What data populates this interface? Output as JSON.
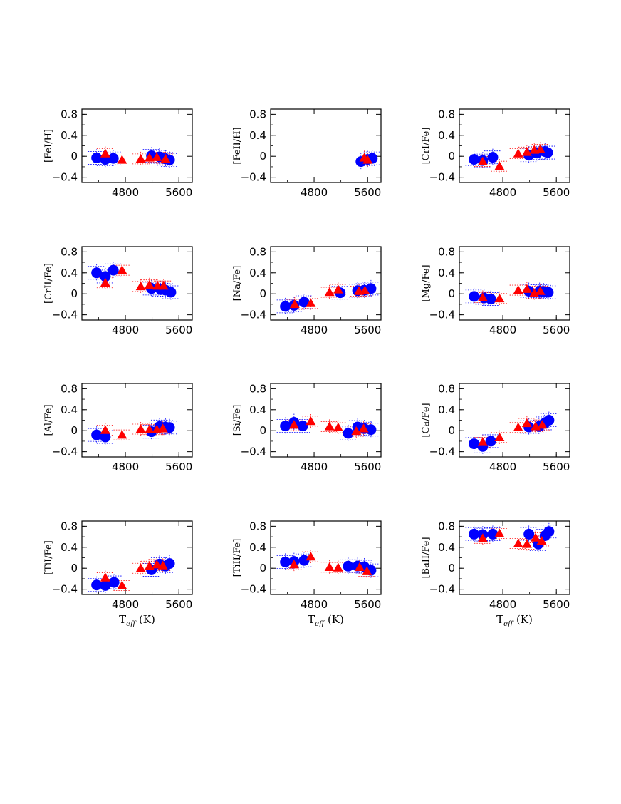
{
  "chart_data": [
    {
      "type": "scatter",
      "ylabel": "[FeI/H]",
      "xlabel": "",
      "xlim": [
        4150,
        5800
      ],
      "ylim": [
        -0.5,
        0.9
      ],
      "xticks": [
        4800,
        5600
      ],
      "yticks": [
        0.8,
        0.4,
        0,
        -0.4
      ],
      "ytick_labels": [
        "0.8",
        "0.4",
        "0",
        "−0.4"
      ],
      "xtick_labels": [
        "4800",
        "5600"
      ],
      "series": [
        {
          "name": "circles",
          "color": "#0000ff",
          "points": [
            [
              4370,
              -0.03
            ],
            [
              4500,
              -0.06
            ],
            [
              4620,
              -0.04
            ],
            [
              5190,
              0.01
            ],
            [
              5310,
              -0.01
            ],
            [
              5400,
              -0.05
            ],
            [
              5460,
              -0.07
            ]
          ]
        },
        {
          "name": "triangles",
          "color": "#ff0000",
          "points": [
            [
              4500,
              0.05
            ],
            [
              4750,
              -0.07
            ],
            [
              5030,
              -0.05
            ],
            [
              5160,
              -0.03
            ],
            [
              5270,
              -0.02
            ],
            [
              5400,
              -0.05
            ]
          ]
        }
      ]
    },
    {
      "type": "scatter",
      "ylabel": "[FeII/H]",
      "xlabel": "",
      "xlim": [
        4150,
        5800
      ],
      "ylim": [
        -0.5,
        0.9
      ],
      "xticks": [
        4800,
        5600
      ],
      "yticks": [
        0.8,
        0.4,
        0,
        -0.4
      ],
      "ytick_labels": [
        "0.8",
        "0.4",
        "0",
        "−0.4"
      ],
      "xtick_labels": [
        "4800",
        "5600"
      ],
      "series": [
        {
          "name": "circles",
          "color": "#0000ff",
          "points": [
            [
              5500,
              -0.1
            ],
            [
              5600,
              -0.06
            ],
            [
              5670,
              -0.04
            ]
          ]
        },
        {
          "name": "triangles",
          "color": "#ff0000",
          "points": [
            [
              5550,
              -0.03
            ],
            [
              5600,
              -0.07
            ]
          ]
        }
      ]
    },
    {
      "type": "scatter",
      "ylabel": "[CrI/Fe]",
      "xlabel": "",
      "xlim": [
        4150,
        5800
      ],
      "ylim": [
        -0.5,
        0.9
      ],
      "xticks": [
        4800,
        5600
      ],
      "yticks": [
        0.8,
        0.4,
        0,
        -0.4
      ],
      "ytick_labels": [
        "0.8",
        "0.4",
        "0",
        "−0.4"
      ],
      "xtick_labels": [
        "4800",
        "5600"
      ],
      "series": [
        {
          "name": "circles",
          "color": "#0000ff",
          "points": [
            [
              4370,
              -0.06
            ],
            [
              4500,
              -0.08
            ],
            [
              4650,
              -0.02
            ],
            [
              5190,
              0.02
            ],
            [
              5310,
              0.06
            ],
            [
              5430,
              0.09
            ],
            [
              5470,
              0.07
            ]
          ]
        },
        {
          "name": "triangles",
          "color": "#ff0000",
          "points": [
            [
              4500,
              -0.1
            ],
            [
              4750,
              -0.19
            ],
            [
              5030,
              0.05
            ],
            [
              5160,
              0.08
            ],
            [
              5270,
              0.12
            ],
            [
              5360,
              0.13
            ]
          ]
        }
      ]
    },
    {
      "type": "scatter",
      "ylabel": "[CrII/Fe]",
      "xlabel": "",
      "xlim": [
        4150,
        5800
      ],
      "ylim": [
        -0.5,
        0.9
      ],
      "xticks": [
        4800,
        5600
      ],
      "yticks": [
        0.8,
        0.4,
        0,
        -0.4
      ],
      "ytick_labels": [
        "0.8",
        "0.4",
        "0",
        "−0.4"
      ],
      "xtick_labels": [
        "4800",
        "5600"
      ],
      "series": [
        {
          "name": "circles",
          "color": "#0000ff",
          "points": [
            [
              4370,
              0.4
            ],
            [
              4500,
              0.33
            ],
            [
              4620,
              0.45
            ],
            [
              5190,
              0.1
            ],
            [
              5330,
              0.08
            ],
            [
              5400,
              0.07
            ],
            [
              5480,
              0.03
            ]
          ]
        },
        {
          "name": "triangles",
          "color": "#ff0000",
          "points": [
            [
              4500,
              0.21
            ],
            [
              4750,
              0.45
            ],
            [
              5030,
              0.14
            ],
            [
              5160,
              0.17
            ],
            [
              5280,
              0.15
            ],
            [
              5370,
              0.15
            ]
          ]
        }
      ]
    },
    {
      "type": "scatter",
      "ylabel": "[Na/Fe]",
      "xlabel": "",
      "xlim": [
        4150,
        5800
      ],
      "ylim": [
        -0.5,
        0.9
      ],
      "xticks": [
        4800,
        5600
      ],
      "yticks": [
        0.8,
        0.4,
        0,
        -0.4
      ],
      "ytick_labels": [
        "0.8",
        "0.4",
        "0",
        "−0.4"
      ],
      "xtick_labels": [
        "4800",
        "5600"
      ],
      "series": [
        {
          "name": "circles",
          "color": "#0000ff",
          "points": [
            [
              4370,
              -0.24
            ],
            [
              4500,
              -0.22
            ],
            [
              4650,
              -0.16
            ],
            [
              5190,
              0.02
            ],
            [
              5450,
              0.06
            ],
            [
              5550,
              0.07
            ],
            [
              5650,
              0.1
            ]
          ]
        },
        {
          "name": "triangles",
          "color": "#ff0000",
          "points": [
            [
              4510,
              -0.2
            ],
            [
              4750,
              -0.18
            ],
            [
              5030,
              0.03
            ],
            [
              5160,
              0.08
            ],
            [
              5470,
              0.05
            ],
            [
              5560,
              0.06
            ]
          ]
        }
      ]
    },
    {
      "type": "scatter",
      "ylabel": "[Mg/Fe]",
      "xlabel": "",
      "xlim": [
        4150,
        5800
      ],
      "ylim": [
        -0.5,
        0.9
      ],
      "xticks": [
        4800,
        5600
      ],
      "yticks": [
        0.8,
        0.4,
        0,
        -0.4
      ],
      "ytick_labels": [
        "0.8",
        "0.4",
        "0",
        "−0.4"
      ],
      "xtick_labels": [
        "4800",
        "5600"
      ],
      "series": [
        {
          "name": "circles",
          "color": "#0000ff",
          "points": [
            [
              4370,
              -0.05
            ],
            [
              4520,
              -0.08
            ],
            [
              4620,
              -0.1
            ],
            [
              5190,
              0.05
            ],
            [
              5350,
              0.05
            ],
            [
              5410,
              0.04
            ],
            [
              5480,
              0.03
            ]
          ]
        },
        {
          "name": "triangles",
          "color": "#ff0000",
          "points": [
            [
              4500,
              -0.07
            ],
            [
              4750,
              -0.09
            ],
            [
              5030,
              0.07
            ],
            [
              5160,
              0.09
            ],
            [
              5270,
              0.01
            ],
            [
              5360,
              0.05
            ]
          ]
        }
      ]
    },
    {
      "type": "scatter",
      "ylabel": "[Al/Fe]",
      "xlabel": "",
      "xlim": [
        4150,
        5800
      ],
      "ylim": [
        -0.5,
        0.9
      ],
      "xticks": [
        4800,
        5600
      ],
      "yticks": [
        0.8,
        0.4,
        0,
        -0.4
      ],
      "ytick_labels": [
        "0.8",
        "0.4",
        "0",
        "−0.4"
      ],
      "xtick_labels": [
        "4800",
        "5600"
      ],
      "series": [
        {
          "name": "circles",
          "color": "#0000ff",
          "points": [
            [
              4370,
              -0.08
            ],
            [
              4500,
              -0.12
            ],
            [
              5190,
              -0.02
            ],
            [
              5310,
              0.08
            ],
            [
              5400,
              0.07
            ],
            [
              5460,
              0.06
            ]
          ]
        },
        {
          "name": "triangles",
          "color": "#ff0000",
          "points": [
            [
              4500,
              0.01
            ],
            [
              4750,
              -0.08
            ],
            [
              5030,
              0.03
            ],
            [
              5160,
              0.02
            ],
            [
              5270,
              0.02
            ],
            [
              5360,
              0.04
            ]
          ]
        }
      ]
    },
    {
      "type": "scatter",
      "ylabel": "[Si/Fe]",
      "xlabel": "",
      "xlim": [
        4150,
        5800
      ],
      "ylim": [
        -0.5,
        0.9
      ],
      "xticks": [
        4800,
        5600
      ],
      "yticks": [
        0.8,
        0.4,
        0,
        -0.4
      ],
      "ytick_labels": [
        "0.8",
        "0.4",
        "0",
        "−0.4"
      ],
      "xtick_labels": [
        "4800",
        "5600"
      ],
      "series": [
        {
          "name": "circles",
          "color": "#0000ff",
          "points": [
            [
              4370,
              0.09
            ],
            [
              4500,
              0.16
            ],
            [
              4630,
              0.09
            ],
            [
              5310,
              -0.05
            ],
            [
              5450,
              0.07
            ],
            [
              5550,
              0.04
            ],
            [
              5650,
              0.02
            ]
          ]
        },
        {
          "name": "triangles",
          "color": "#ff0000",
          "points": [
            [
              4500,
              0.11
            ],
            [
              4750,
              0.18
            ],
            [
              5030,
              0.08
            ],
            [
              5160,
              0.06
            ],
            [
              5430,
              -0.01
            ],
            [
              5540,
              0.04
            ]
          ]
        }
      ]
    },
    {
      "type": "scatter",
      "ylabel": "[Ca/Fe]",
      "xlabel": "",
      "xlim": [
        4150,
        5800
      ],
      "ylim": [
        -0.5,
        0.9
      ],
      "xticks": [
        4800,
        5600
      ],
      "yticks": [
        0.8,
        0.4,
        0,
        -0.4
      ],
      "ytick_labels": [
        "0.8",
        "0.4",
        "0",
        "−0.4"
      ],
      "xtick_labels": [
        "4800",
        "5600"
      ],
      "series": [
        {
          "name": "circles",
          "color": "#0000ff",
          "points": [
            [
              4370,
              -0.25
            ],
            [
              4500,
              -0.3
            ],
            [
              4620,
              -0.2
            ],
            [
              5190,
              0.07
            ],
            [
              5340,
              0.08
            ],
            [
              5420,
              0.14
            ],
            [
              5490,
              0.2
            ]
          ]
        },
        {
          "name": "triangles",
          "color": "#ff0000",
          "points": [
            [
              4500,
              -0.22
            ],
            [
              4750,
              -0.13
            ],
            [
              5030,
              0.06
            ],
            [
              5160,
              0.14
            ],
            [
              5290,
              0.08
            ],
            [
              5390,
              0.11
            ]
          ]
        }
      ]
    },
    {
      "type": "scatter",
      "ylabel": "[TiI/Fe]",
      "xlabel": "Teff (K)",
      "xlim": [
        4150,
        5800
      ],
      "ylim": [
        -0.5,
        0.9
      ],
      "xticks": [
        4800,
        5600
      ],
      "yticks": [
        0.8,
        0.4,
        0,
        -0.4
      ],
      "ytick_labels": [
        "0.8",
        "0.4",
        "0",
        "−0.4"
      ],
      "xtick_labels": [
        "4800",
        "5600"
      ],
      "series": [
        {
          "name": "circles",
          "color": "#0000ff",
          "points": [
            [
              4370,
              -0.32
            ],
            [
              4500,
              -0.33
            ],
            [
              4630,
              -0.27
            ],
            [
              5190,
              -0.03
            ],
            [
              5310,
              0.08
            ],
            [
              5400,
              0.04
            ],
            [
              5460,
              0.09
            ]
          ]
        },
        {
          "name": "triangles",
          "color": "#ff0000",
          "points": [
            [
              4500,
              -0.18
            ],
            [
              4750,
              -0.33
            ],
            [
              5030,
              0.0
            ],
            [
              5160,
              0.04
            ],
            [
              5270,
              0.07
            ],
            [
              5360,
              0.05
            ]
          ]
        }
      ]
    },
    {
      "type": "scatter",
      "ylabel": "[TiII/Fe]",
      "xlabel": "Teff (K)",
      "xlim": [
        4150,
        5800
      ],
      "ylim": [
        -0.5,
        0.9
      ],
      "xticks": [
        4800,
        5600
      ],
      "yticks": [
        0.8,
        0.4,
        0,
        -0.4
      ],
      "ytick_labels": [
        "0.8",
        "0.4",
        "0",
        "−0.4"
      ],
      "xtick_labels": [
        "4800",
        "5600"
      ],
      "series": [
        {
          "name": "circles",
          "color": "#0000ff",
          "points": [
            [
              4370,
              0.12
            ],
            [
              4500,
              0.13
            ],
            [
              4650,
              0.15
            ],
            [
              5310,
              0.04
            ],
            [
              5450,
              0.04
            ],
            [
              5550,
              0.03
            ],
            [
              5650,
              -0.04
            ]
          ]
        },
        {
          "name": "triangles",
          "color": "#ff0000",
          "points": [
            [
              4500,
              0.07
            ],
            [
              4750,
              0.22
            ],
            [
              5030,
              0.02
            ],
            [
              5160,
              0.01
            ],
            [
              5480,
              0.02
            ],
            [
              5590,
              -0.06
            ]
          ]
        }
      ]
    },
    {
      "type": "scatter",
      "ylabel": "[BaII/Fe]",
      "xlabel": "Teff (K)",
      "xlim": [
        4150,
        5800
      ],
      "ylim": [
        -0.5,
        0.9
      ],
      "xticks": [
        4800,
        5600
      ],
      "yticks": [
        0.8,
        0.4,
        0,
        -0.4
      ],
      "ytick_labels": [
        "0.8",
        "0.4",
        "0",
        "−0.4"
      ],
      "xtick_labels": [
        "4800",
        "5600"
      ],
      "series": [
        {
          "name": "circles",
          "color": "#0000ff",
          "points": [
            [
              4370,
              0.65
            ],
            [
              4500,
              0.64
            ],
            [
              4650,
              0.65
            ],
            [
              5190,
              0.65
            ],
            [
              5330,
              0.46
            ],
            [
              5430,
              0.62
            ],
            [
              5490,
              0.7
            ]
          ]
        },
        {
          "name": "triangles",
          "color": "#ff0000",
          "points": [
            [
              4500,
              0.57
            ],
            [
              4750,
              0.66
            ],
            [
              5030,
              0.47
            ],
            [
              5160,
              0.46
            ],
            [
              5290,
              0.58
            ],
            [
              5380,
              0.52
            ]
          ]
        }
      ]
    }
  ],
  "colors": {
    "circles": "#0000ff",
    "triangles": "#ff0000",
    "axes": "#000000"
  }
}
